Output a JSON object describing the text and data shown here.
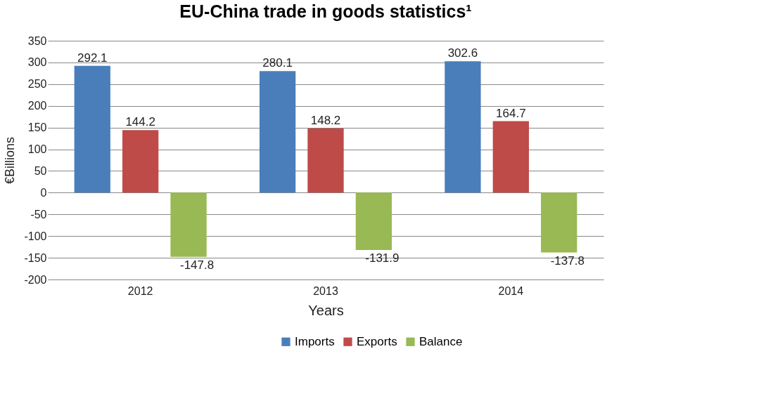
{
  "chart_data": {
    "type": "bar",
    "title": "EU-China trade in goods statistics¹",
    "xlabel": "Years",
    "ylabel": "€Billions",
    "categories": [
      "2012",
      "2013",
      "2014"
    ],
    "series": [
      {
        "name": "Imports",
        "color": "#4a7ebb",
        "values": [
          292.1,
          280.1,
          302.6
        ]
      },
      {
        "name": "Exports",
        "color": "#be4b48",
        "values": [
          144.2,
          148.2,
          164.7
        ]
      },
      {
        "name": "Balance",
        "color": "#98b954",
        "values": [
          -147.8,
          -131.9,
          -137.8
        ]
      }
    ],
    "ylim": [
      -200,
      350
    ],
    "yticks": [
      -200,
      -150,
      -100,
      -50,
      0,
      50,
      100,
      150,
      200,
      250,
      300,
      350
    ],
    "grid": "y",
    "legend": "bottom",
    "data_labels": true
  }
}
